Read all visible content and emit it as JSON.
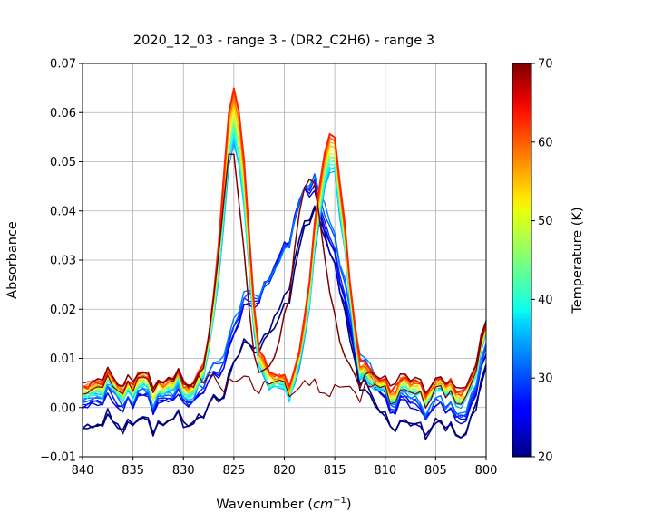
{
  "chart_data": {
    "type": "line",
    "title": "2020_12_03 - range 3 - (DR2_C2H6) - range 3",
    "xlabel": "Wavenumber (cm^-1)",
    "xlabel_main": "Wavenumber (",
    "xlabel_unit": "cm",
    "xlabel_sup": "−1",
    "xlabel_close": ")",
    "ylabel": "Absorbance",
    "xlim": [
      840,
      800
    ],
    "ylim": [
      -0.01,
      0.07
    ],
    "x_reversed": true,
    "grid": true,
    "xticks": [
      "840",
      "835",
      "830",
      "825",
      "820",
      "815",
      "810",
      "805",
      "800"
    ],
    "yticks": [
      "−0.01",
      "0.00",
      "0.01",
      "0.02",
      "0.03",
      "0.04",
      "0.05",
      "0.06",
      "0.07"
    ],
    "colorbar": {
      "label": "Temperature (K)",
      "range": [
        20,
        70
      ],
      "ticks": [
        "20",
        "30",
        "40",
        "50",
        "60",
        "70"
      ],
      "colormap": "jet"
    },
    "series_temperatures": [
      20,
      20,
      24,
      26,
      28,
      30,
      32,
      34,
      36,
      38,
      40,
      42,
      44,
      46,
      48,
      50,
      52,
      54,
      56,
      58,
      60,
      62,
      70,
      70
    ],
    "series_groups": {
      "cold_phase_low_baseline": {
        "temperatures": [
          20,
          20
        ],
        "peaks": [
          {
            "center": 817.0,
            "height": 0.042,
            "width": 2.6
          }
        ],
        "shoulder": {
          "center": 823.5,
          "height": 0.014,
          "width": 2.2
        },
        "baseline_left": -0.003
      },
      "cold_phase": {
        "temperatures": [
          24,
          26,
          28,
          30,
          32
        ],
        "peaks": [
          {
            "center": 817.5,
            "height": 0.042,
            "width": 2.7
          }
        ],
        "shoulder": {
          "center": 823.5,
          "height": 0.016,
          "width": 2.2
        },
        "baseline_left": 0.001
      },
      "warm_phase": {
        "temperatures": [
          34,
          36,
          38,
          40,
          42,
          44,
          46,
          48,
          50,
          52,
          54,
          56,
          58,
          60,
          62
        ],
        "peaks": [
          {
            "center": 825.0,
            "height_min": 0.05,
            "height_max": 0.059,
            "width": 1.25
          },
          {
            "center": 815.5,
            "height_min": 0.046,
            "height_max": 0.051,
            "width": 1.45
          }
        ],
        "baseline_left": 0.003
      },
      "hot_flat": {
        "temperatures": [
          70
        ],
        "peaks": [],
        "baseline_left": 0.006
      },
      "hot_peaked": {
        "temperatures": [
          70
        ],
        "peaks": [
          {
            "center": 825.3,
            "height": 0.046,
            "width": 1.15
          },
          {
            "center": 817.5,
            "height": 0.04,
            "width": 1.6
          }
        ],
        "baseline_left": 0.006
      }
    }
  }
}
